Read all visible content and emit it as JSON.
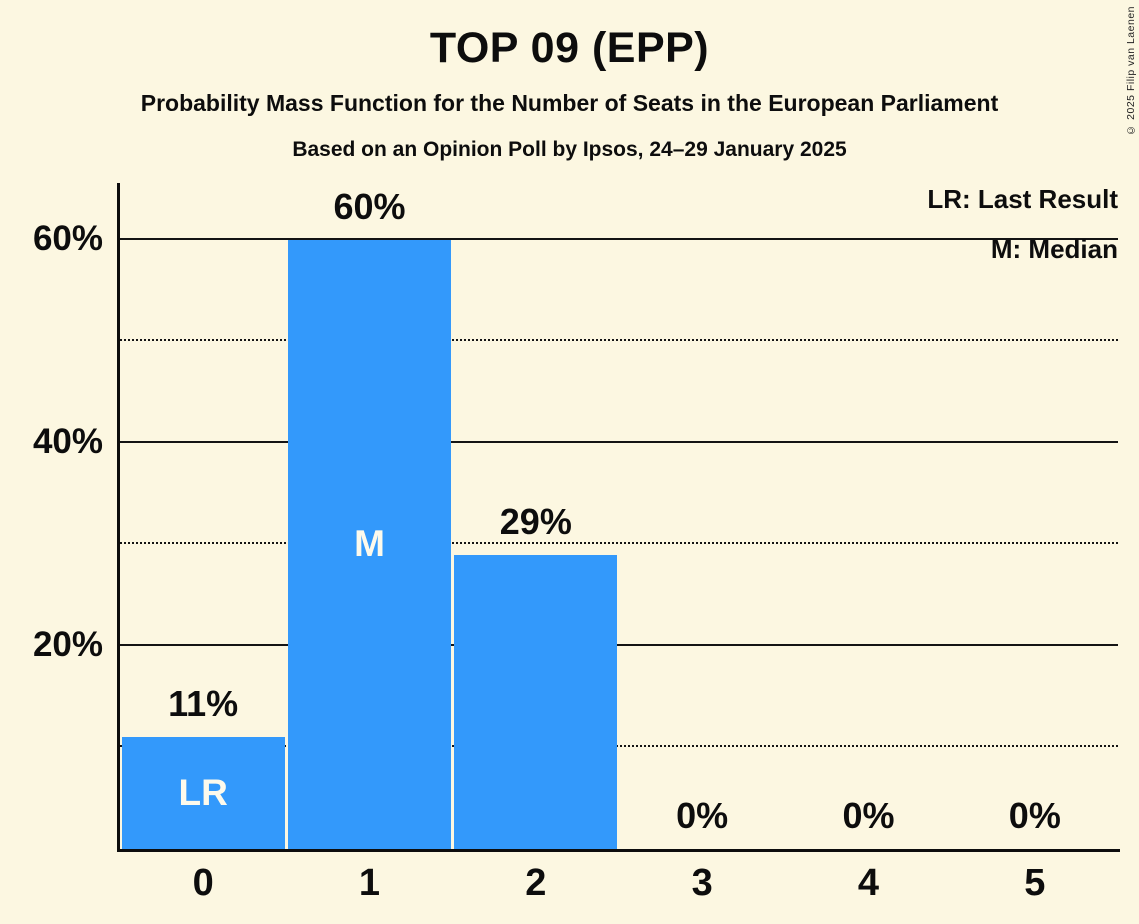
{
  "title": "TOP 09 (EPP)",
  "subtitle": "Probability Mass Function for the Number of Seats in the European Parliament",
  "poll_line": "Based on an Opinion Poll by Ipsos, 24–29 January 2025",
  "copyright": "© 2025 Filip van Laenen",
  "legend": {
    "lr": "LR: Last Result",
    "m": "M: Median"
  },
  "colors": {
    "background": "#fcf7e1",
    "bar": "#3399fb",
    "text": "#0d0d0d",
    "bar_label": "#fdfaec",
    "grid": "#141414"
  },
  "chart_data": {
    "type": "bar",
    "title": "TOP 09 (EPP)",
    "categories": [
      "0",
      "1",
      "2",
      "3",
      "4",
      "5"
    ],
    "values": [
      11,
      60,
      29,
      0,
      0,
      0
    ],
    "value_labels": [
      "11%",
      "60%",
      "29%",
      "0%",
      "0%",
      "0%"
    ],
    "bar_annotations": [
      "LR",
      "M",
      "",
      "",
      "",
      ""
    ],
    "xlabel": "",
    "ylabel": "",
    "ylim": [
      0,
      65.6
    ],
    "yticks": [
      20,
      40,
      60
    ],
    "ytick_labels": [
      "20%",
      "40%",
      "60%"
    ],
    "grid_solid": [
      20,
      40,
      60
    ],
    "grid_dotted": [
      10,
      30,
      50
    ],
    "grid": true,
    "legend_position": "top-right"
  }
}
